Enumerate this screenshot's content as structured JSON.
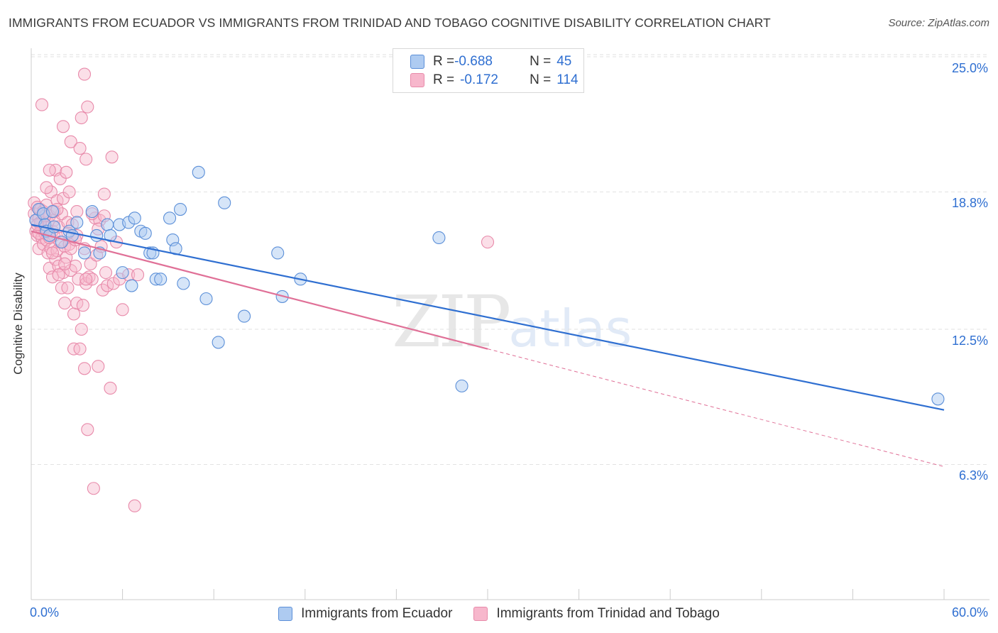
{
  "header": {
    "title": "IMMIGRANTS FROM ECUADOR VS IMMIGRANTS FROM TRINIDAD AND TOBAGO COGNITIVE DISABILITY CORRELATION CHART",
    "source": "Source: ZipAtlas.com"
  },
  "watermark": {
    "zip": "ZIP",
    "atlas": "atlas"
  },
  "legend_top": {
    "rows": [
      {
        "r_label": "R = ",
        "r_value": "-0.688",
        "n_label": "N = ",
        "n_value": "45"
      },
      {
        "r_label": "R = ",
        "r_value": "-0.172",
        "n_label": "N = ",
        "n_value": "114"
      }
    ]
  },
  "colors": {
    "series1_fill": "#aecbf1",
    "series1_stroke": "#5b8fd8",
    "series1_line": "#2f6fd1",
    "series2_fill": "#f7b7cc",
    "series2_stroke": "#e88aaa",
    "series2_line": "#e07097",
    "axis_text": "#2f6fd1",
    "grid": "#e2e2e2"
  },
  "chart_data": {
    "type": "scatter",
    "title": "IMMIGRANTS FROM ECUADOR VS IMMIGRANTS FROM TRINIDAD AND TOBAGO COGNITIVE DISABILITY CORRELATION CHART",
    "xlabel": "",
    "ylabel": "Cognitive Disability",
    "xlim": [
      0,
      60
    ],
    "ylim": [
      0,
      27.5
    ],
    "x_tick_labels": [
      "0.0%",
      "60.0%"
    ],
    "y_ticks": [
      6.3,
      12.5,
      18.8,
      25.0
    ],
    "y_tick_labels": [
      "6.3%",
      "12.5%",
      "18.8%",
      "25.0%"
    ],
    "grid": true,
    "legend_position": "top-center",
    "series": [
      {
        "name": "Immigrants from Ecuador",
        "r": -0.688,
        "n": 45,
        "trend": {
          "x": [
            0,
            60
          ],
          "y": [
            17.3,
            8.8
          ]
        },
        "points": [
          [
            0.3,
            17.5
          ],
          [
            0.5,
            18.0
          ],
          [
            0.8,
            17.8
          ],
          [
            0.9,
            17.3
          ],
          [
            1.0,
            17.0
          ],
          [
            1.2,
            16.8
          ],
          [
            1.4,
            17.9
          ],
          [
            1.5,
            17.2
          ],
          [
            2.0,
            16.5
          ],
          [
            2.5,
            17.0
          ],
          [
            2.7,
            16.8
          ],
          [
            3.0,
            17.4
          ],
          [
            3.5,
            16.0
          ],
          [
            4.0,
            17.9
          ],
          [
            4.3,
            16.8
          ],
          [
            4.5,
            16.0
          ],
          [
            5.0,
            17.3
          ],
          [
            5.2,
            16.8
          ],
          [
            5.8,
            17.3
          ],
          [
            6.0,
            15.1
          ],
          [
            6.4,
            17.4
          ],
          [
            6.6,
            14.5
          ],
          [
            6.8,
            17.6
          ],
          [
            7.2,
            17.0
          ],
          [
            7.5,
            16.9
          ],
          [
            7.8,
            16.0
          ],
          [
            8.0,
            16.0
          ],
          [
            8.2,
            14.8
          ],
          [
            8.5,
            14.8
          ],
          [
            9.1,
            17.6
          ],
          [
            9.3,
            16.6
          ],
          [
            9.5,
            16.2
          ],
          [
            9.8,
            18.0
          ],
          [
            10.0,
            14.6
          ],
          [
            11.0,
            19.7
          ],
          [
            11.5,
            13.9
          ],
          [
            12.3,
            11.9
          ],
          [
            12.7,
            18.3
          ],
          [
            14.0,
            13.1
          ],
          [
            16.2,
            16.0
          ],
          [
            16.5,
            14.0
          ],
          [
            17.7,
            14.8
          ],
          [
            26.8,
            16.7
          ],
          [
            28.3,
            9.9
          ],
          [
            59.6,
            9.3
          ]
        ]
      },
      {
        "name": "Immigrants from Trinidad and Tobago",
        "r": -0.172,
        "n": 114,
        "trend": {
          "x": [
            0,
            30
          ],
          "y": [
            17.0,
            11.6
          ]
        },
        "trend_dashed": {
          "x": [
            30,
            60
          ],
          "y": [
            11.6,
            6.2
          ]
        },
        "points": [
          [
            0.2,
            18.3
          ],
          [
            0.2,
            17.8
          ],
          [
            0.3,
            17.5
          ],
          [
            0.3,
            17.0
          ],
          [
            0.4,
            18.1
          ],
          [
            0.4,
            16.8
          ],
          [
            0.5,
            17.6
          ],
          [
            0.5,
            16.2
          ],
          [
            0.6,
            18.0
          ],
          [
            0.6,
            17.3
          ],
          [
            0.7,
            16.7
          ],
          [
            0.7,
            17.1
          ],
          [
            0.8,
            17.9
          ],
          [
            0.8,
            16.4
          ],
          [
            0.9,
            17.2
          ],
          [
            0.9,
            16.9
          ],
          [
            1.0,
            18.2
          ],
          [
            1.0,
            16.6
          ],
          [
            1.1,
            17.4
          ],
          [
            1.1,
            16.0
          ],
          [
            1.2,
            17.7
          ],
          [
            1.2,
            15.3
          ],
          [
            1.3,
            18.8
          ],
          [
            1.3,
            16.2
          ],
          [
            1.4,
            17.0
          ],
          [
            1.4,
            14.9
          ],
          [
            1.5,
            17.5
          ],
          [
            1.5,
            16.8
          ],
          [
            1.6,
            19.8
          ],
          [
            1.6,
            15.7
          ],
          [
            1.7,
            18.4
          ],
          [
            1.7,
            16.1
          ],
          [
            1.8,
            17.2
          ],
          [
            1.8,
            15.4
          ],
          [
            1.9,
            19.4
          ],
          [
            1.9,
            16.5
          ],
          [
            2.0,
            17.8
          ],
          [
            2.0,
            14.4
          ],
          [
            2.1,
            18.5
          ],
          [
            2.1,
            15.1
          ],
          [
            2.2,
            16.3
          ],
          [
            2.2,
            13.7
          ],
          [
            2.3,
            19.7
          ],
          [
            2.3,
            15.8
          ],
          [
            2.4,
            17.4
          ],
          [
            2.4,
            14.4
          ],
          [
            2.5,
            18.8
          ],
          [
            2.5,
            16.4
          ],
          [
            2.6,
            15.2
          ],
          [
            2.7,
            17.3
          ],
          [
            2.8,
            13.2
          ],
          [
            2.8,
            11.6
          ],
          [
            2.9,
            15.4
          ],
          [
            3.0,
            16.8
          ],
          [
            3.0,
            13.7
          ],
          [
            3.1,
            14.8
          ],
          [
            3.2,
            11.6
          ],
          [
            3.3,
            12.5
          ],
          [
            3.4,
            13.6
          ],
          [
            3.5,
            16.2
          ],
          [
            3.5,
            10.7
          ],
          [
            3.6,
            14.6
          ],
          [
            3.7,
            7.9
          ],
          [
            3.8,
            14.9
          ],
          [
            3.9,
            15.5
          ],
          [
            4.0,
            14.8
          ],
          [
            4.1,
            5.2
          ],
          [
            4.2,
            17.6
          ],
          [
            4.3,
            15.9
          ],
          [
            4.4,
            10.8
          ],
          [
            4.5,
            17.5
          ],
          [
            4.6,
            16.3
          ],
          [
            4.7,
            14.3
          ],
          [
            4.8,
            17.7
          ],
          [
            4.9,
            15.1
          ],
          [
            5.0,
            14.5
          ],
          [
            5.2,
            9.8
          ],
          [
            5.4,
            14.6
          ],
          [
            5.6,
            16.5
          ],
          [
            5.8,
            14.8
          ],
          [
            6.0,
            13.4
          ],
          [
            6.4,
            15.0
          ],
          [
            6.8,
            4.4
          ],
          [
            7.0,
            15.0
          ],
          [
            0.7,
            22.8
          ],
          [
            2.1,
            21.8
          ],
          [
            3.3,
            22.2
          ],
          [
            3.7,
            22.7
          ],
          [
            3.5,
            24.2
          ],
          [
            2.6,
            21.1
          ],
          [
            3.2,
            20.8
          ],
          [
            3.6,
            20.3
          ],
          [
            5.3,
            20.4
          ],
          [
            1.2,
            19.8
          ],
          [
            4.8,
            18.7
          ],
          [
            1.0,
            19.0
          ],
          [
            3.0,
            17.9
          ],
          [
            0.6,
            17.4
          ],
          [
            1.8,
            15.0
          ],
          [
            2.6,
            16.2
          ],
          [
            30.0,
            16.5
          ],
          [
            4.0,
            17.8
          ],
          [
            4.4,
            17.1
          ],
          [
            1.5,
            17.9
          ],
          [
            2.9,
            16.6
          ],
          [
            0.5,
            16.9
          ],
          [
            1.4,
            16.0
          ],
          [
            2.2,
            15.5
          ],
          [
            3.6,
            14.8
          ],
          [
            0.9,
            17.7
          ],
          [
            1.7,
            18.0
          ],
          [
            2.4,
            16.9
          ],
          [
            0.4,
            17.3
          ],
          [
            1.2,
            16.7
          ]
        ]
      }
    ]
  },
  "legend_bottom": {
    "items": [
      "Immigrants from Ecuador",
      "Immigrants from Trinidad and Tobago"
    ]
  }
}
